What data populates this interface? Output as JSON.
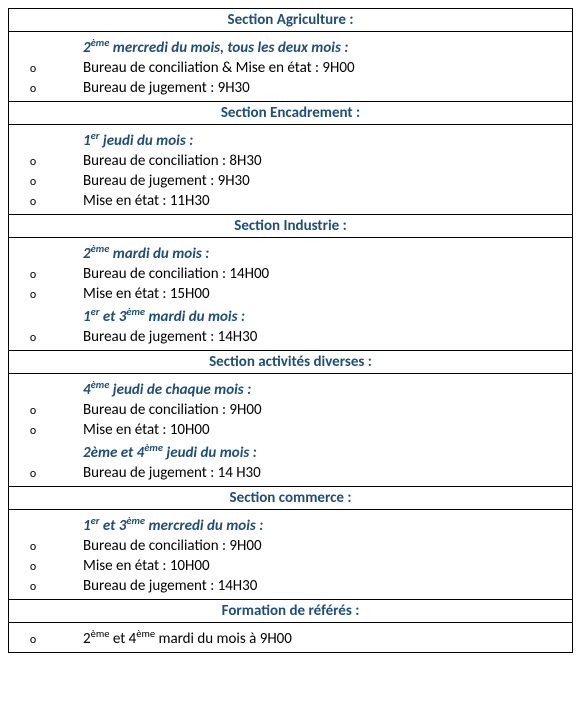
{
  "colors": {
    "heading": "#1f4e79",
    "border": "#000000",
    "text": "#000000"
  },
  "marker": "o",
  "sections": [
    {
      "title": "Section Agriculture :",
      "groups": [
        {
          "schedule_html": "2<sup>ème</sup> mercredi du mois, tous les deux mois :",
          "items": [
            "Bureau de conciliation & Mise en état : 9H00",
            "Bureau de jugement : 9H30"
          ]
        }
      ]
    },
    {
      "title": "Section Encadrement :",
      "groups": [
        {
          "schedule_html": "1<sup>er</sup> jeudi du mois :",
          "items": [
            "Bureau de conciliation : 8H30",
            "Bureau de jugement : 9H30",
            "Mise en état  : 11H30"
          ]
        }
      ]
    },
    {
      "title": "Section Industrie :",
      "groups": [
        {
          "schedule_html": "2<sup>ème</sup> mardi du mois :",
          "items": [
            "Bureau de conciliation : 14H00",
            "Mise en état : 15H00"
          ]
        },
        {
          "schedule_html": "1<sup>er</sup> et 3<sup>ème</sup> mardi du mois :",
          "items": [
            "Bureau de jugement : 14H30"
          ]
        }
      ]
    },
    {
      "title": "Section activités diverses :",
      "groups": [
        {
          "schedule_html": "4<sup>ème</sup> jeudi de chaque mois :",
          "items": [
            "Bureau de conciliation : 9H00",
            "Mise en état : 10H00"
          ]
        },
        {
          "schedule_html": "2ème et 4<sup>ème</sup> jeudi du mois :",
          "items": [
            "Bureau de jugement : 14 H30"
          ]
        }
      ]
    },
    {
      "title": "Section commerce :",
      "groups": [
        {
          "schedule_html": "1<sup>er</sup> et 3<sup>ème</sup> mercredi du mois :",
          "items": [
            "Bureau de conciliation : 9H00",
            "Mise en état : 10H00",
            "Bureau de jugement : 14H30"
          ]
        }
      ]
    },
    {
      "title": "Formation de référés :",
      "groups": [
        {
          "special": true,
          "items_html": [
            "2<sup>ème</sup> et 4<sup>ème</sup> mardi du mois à 9H00"
          ]
        }
      ]
    }
  ]
}
